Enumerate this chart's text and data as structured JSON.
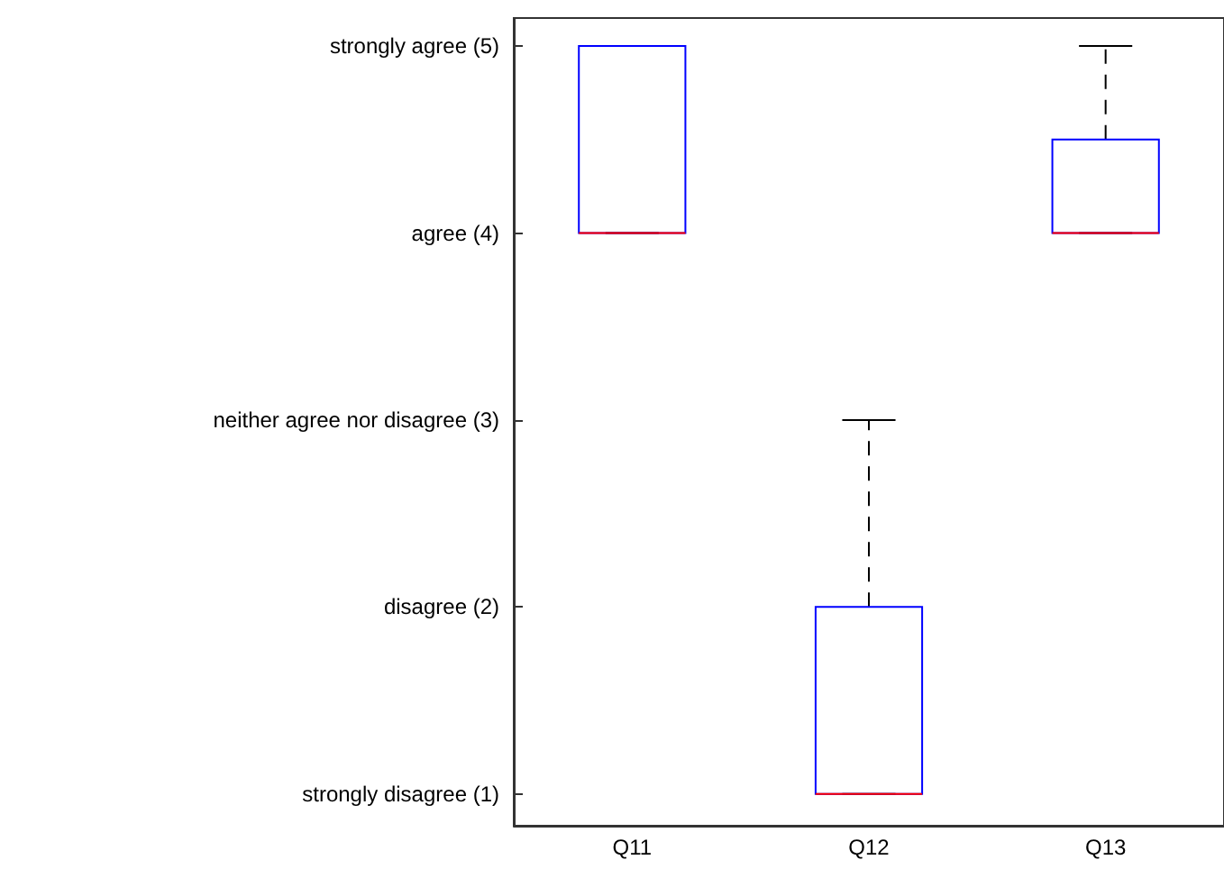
{
  "chart_data": {
    "type": "box",
    "categories": [
      "Q11",
      "Q12",
      "Q13"
    ],
    "ylim": [
      0.83,
      5.15
    ],
    "yticks": [
      {
        "value": 1,
        "label": "strongly disagree (1)"
      },
      {
        "value": 2,
        "label": "disagree (2)"
      },
      {
        "value": 3,
        "label": "neither agree nor disagree (3)"
      },
      {
        "value": 4,
        "label": "agree (4)"
      },
      {
        "value": 5,
        "label": "strongly agree (5)"
      }
    ],
    "series": [
      {
        "color": "#0000ff",
        "boxes": [
          {
            "low": 4,
            "q1": 4,
            "median": 4,
            "q3": 5,
            "high": 5
          },
          {
            "low": 1,
            "q1": 1,
            "median": 1,
            "q3": 2,
            "high": 3
          },
          {
            "low": 4,
            "q1": 4,
            "median": 4,
            "q3": 4.5,
            "high": 5
          }
        ]
      }
    ]
  }
}
